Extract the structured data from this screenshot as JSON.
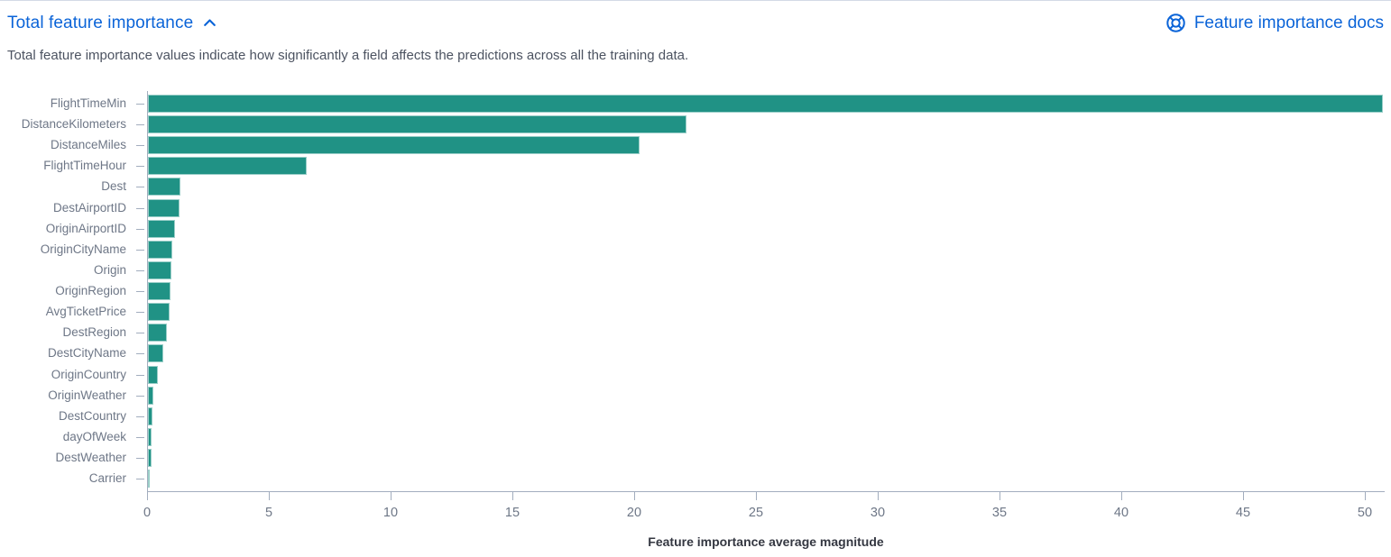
{
  "header": {
    "title": "Total feature importance",
    "docs_link_label": "Feature importance docs"
  },
  "description": "Total feature importance values indicate how significantly a field affects the predictions across all the training data.",
  "icons": {
    "collapse": "chevron-up-icon",
    "docs": "help-lifering-icon"
  },
  "colors": {
    "bar": "#209285",
    "link_blue": "#0b64d8",
    "axis": "#a2adbe",
    "tick_label": "#6e7787",
    "axis_title": "#343741"
  },
  "chart_data": {
    "type": "bar",
    "orientation": "horizontal",
    "title": "Total feature importance",
    "xlabel": "Feature importance average magnitude",
    "ylabel": "",
    "xlim": [
      0,
      50
    ],
    "x_ticks": [
      0,
      5,
      10,
      15,
      20,
      25,
      30,
      35,
      40,
      45,
      50
    ],
    "grid": false,
    "legend": false,
    "categories": [
      "FlightTimeMin",
      "DistanceKilometers",
      "DistanceMiles",
      "FlightTimeHour",
      "Dest",
      "DestAirportID",
      "OriginAirportID",
      "OriginCityName",
      "Origin",
      "OriginRegion",
      "AvgTicketPrice",
      "DestRegion",
      "DestCityName",
      "OriginCountry",
      "OriginWeather",
      "DestCountry",
      "dayOfWeek",
      "DestWeather",
      "Carrier"
    ],
    "values": [
      50.7,
      22.1,
      20.2,
      6.5,
      1.35,
      1.3,
      1.1,
      1.0,
      0.96,
      0.92,
      0.89,
      0.76,
      0.62,
      0.41,
      0.21,
      0.19,
      0.16,
      0.13,
      0.06
    ]
  }
}
